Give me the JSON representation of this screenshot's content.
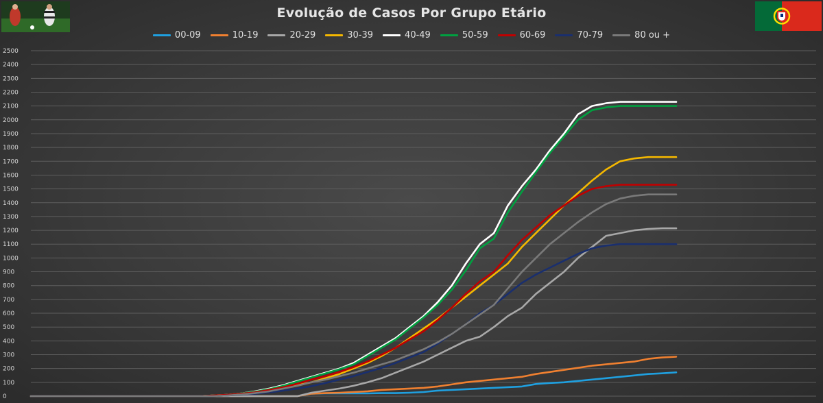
{
  "chart_data": {
    "type": "line",
    "title": "Evolução de Casos Por Grupo Etário",
    "ylim": [
      0,
      2500
    ],
    "ytick_step": 100,
    "grid": true,
    "legend_position": "top",
    "num_points": 47,
    "series": [
      {
        "name": "00-09",
        "color": "#1fa0e0",
        "values": [
          0,
          0,
          0,
          0,
          0,
          0,
          0,
          0,
          0,
          0,
          0,
          0,
          0,
          0,
          0,
          0,
          0,
          0,
          0,
          0,
          18,
          20,
          20,
          20,
          20,
          22,
          22,
          25,
          30,
          40,
          45,
          50,
          55,
          60,
          65,
          70,
          88,
          95,
          100,
          110,
          120,
          130,
          140,
          150,
          160,
          165,
          172
        ]
      },
      {
        "name": "10-19",
        "color": "#f08030",
        "values": [
          0,
          0,
          0,
          0,
          0,
          0,
          0,
          0,
          0,
          0,
          0,
          0,
          0,
          0,
          0,
          0,
          0,
          0,
          0,
          0,
          18,
          22,
          25,
          30,
          35,
          45,
          50,
          55,
          60,
          70,
          85,
          100,
          110,
          120,
          130,
          140,
          160,
          175,
          190,
          205,
          220,
          230,
          240,
          250,
          270,
          280,
          285
        ]
      },
      {
        "name": "20-29",
        "color": "#a8a8a8",
        "values": [
          0,
          0,
          0,
          0,
          0,
          0,
          0,
          0,
          0,
          0,
          0,
          0,
          0,
          0,
          0,
          0,
          0,
          0,
          0,
          0,
          25,
          40,
          55,
          75,
          100,
          130,
          170,
          210,
          250,
          300,
          350,
          400,
          430,
          500,
          580,
          640,
          740,
          820,
          900,
          1000,
          1080,
          1160,
          1180,
          1200,
          1210,
          1215,
          1215
        ]
      },
      {
        "name": "30-39",
        "color": "#f5b800",
        "values": [
          0,
          0,
          0,
          0,
          0,
          0,
          0,
          0,
          0,
          0,
          0,
          0,
          0,
          5,
          10,
          15,
          25,
          40,
          55,
          80,
          100,
          130,
          160,
          200,
          240,
          290,
          350,
          420,
          490,
          560,
          640,
          720,
          800,
          880,
          960,
          1080,
          1180,
          1280,
          1380,
          1470,
          1560,
          1640,
          1700,
          1720,
          1730,
          1730,
          1730
        ]
      },
      {
        "name": "40-49",
        "color": "#ffffff",
        "values": [
          0,
          0,
          0,
          0,
          0,
          0,
          0,
          0,
          0,
          0,
          0,
          0,
          0,
          5,
          10,
          20,
          35,
          55,
          80,
          110,
          140,
          170,
          200,
          240,
          300,
          360,
          420,
          500,
          580,
          680,
          800,
          960,
          1100,
          1180,
          1380,
          1520,
          1640,
          1780,
          1900,
          2040,
          2100,
          2120,
          2130,
          2130,
          2130,
          2130,
          2130
        ]
      },
      {
        "name": "50-59",
        "color": "#00a040",
        "values": [
          0,
          0,
          0,
          0,
          0,
          0,
          0,
          0,
          0,
          0,
          0,
          0,
          0,
          5,
          10,
          20,
          32,
          50,
          75,
          105,
          135,
          165,
          195,
          230,
          290,
          350,
          410,
          490,
          570,
          660,
          770,
          910,
          1070,
          1140,
          1330,
          1480,
          1620,
          1760,
          1880,
          2000,
          2070,
          2090,
          2100,
          2100,
          2100,
          2100,
          2100
        ]
      },
      {
        "name": "60-69",
        "color": "#c00000",
        "values": [
          0,
          0,
          0,
          0,
          0,
          0,
          0,
          0,
          0,
          0,
          0,
          0,
          0,
          5,
          10,
          18,
          28,
          45,
          65,
          90,
          120,
          145,
          175,
          210,
          250,
          300,
          350,
          410,
          470,
          550,
          640,
          740,
          830,
          900,
          1020,
          1130,
          1220,
          1310,
          1380,
          1450,
          1500,
          1520,
          1530,
          1530,
          1530,
          1530,
          1530
        ]
      },
      {
        "name": "70-79",
        "color": "#1a2f6e",
        "values": [
          0,
          0,
          0,
          0,
          0,
          0,
          0,
          0,
          0,
          0,
          0,
          0,
          0,
          0,
          5,
          10,
          18,
          28,
          40,
          55,
          72,
          95,
          120,
          145,
          175,
          205,
          240,
          280,
          320,
          380,
          450,
          520,
          600,
          660,
          740,
          820,
          880,
          930,
          980,
          1030,
          1070,
          1090,
          1100,
          1100,
          1100,
          1100,
          1100
        ]
      },
      {
        "name": "80 ou +",
        "color": "#7a7a7a",
        "values": [
          0,
          0,
          0,
          0,
          0,
          0,
          0,
          0,
          0,
          0,
          0,
          0,
          0,
          0,
          5,
          12,
          22,
          35,
          55,
          75,
          100,
          120,
          145,
          170,
          200,
          230,
          260,
          300,
          340,
          390,
          450,
          520,
          590,
          660,
          780,
          900,
          1000,
          1100,
          1180,
          1260,
          1330,
          1390,
          1430,
          1450,
          1460,
          1460,
          1460
        ]
      }
    ]
  }
}
